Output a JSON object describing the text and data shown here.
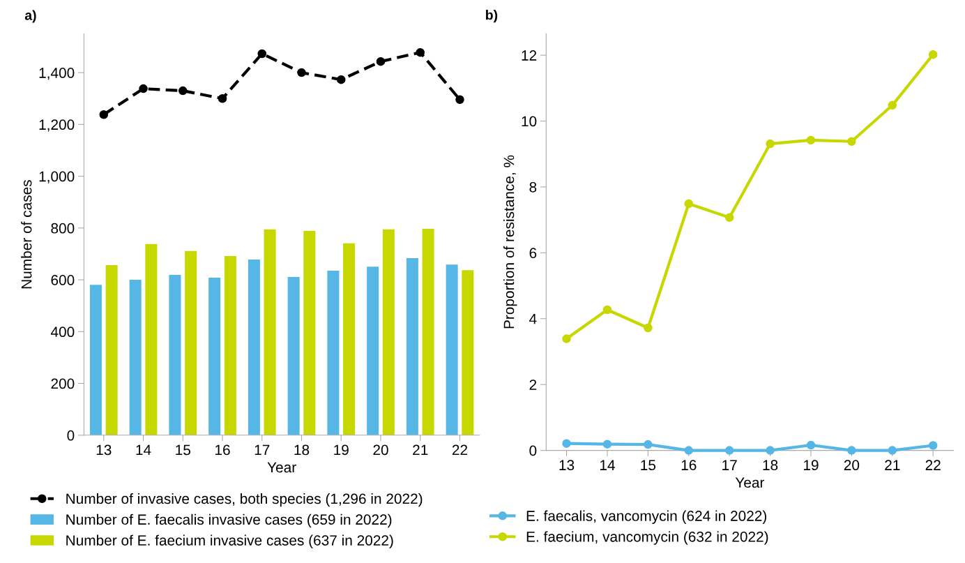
{
  "chart_data": [
    {
      "type": "bar",
      "title": "a)",
      "xlabel": "Year",
      "ylabel": "Number of cases",
      "categories": [
        "13",
        "14",
        "15",
        "16",
        "17",
        "18",
        "19",
        "20",
        "21",
        "22"
      ],
      "ylim": [
        0,
        1550
      ],
      "yticks": [
        0,
        200,
        400,
        {
          "value": 600,
          "label": "600"
        },
        {
          "value": 800,
          "label": "800"
        },
        {
          "value": 1000,
          "label": "1,000"
        },
        {
          "value": 1200,
          "label": "1,200"
        },
        {
          "value": 1400,
          "label": "1,400"
        }
      ],
      "grid": false,
      "legend": "bottom",
      "series": [
        {
          "name": "Number of invasive cases, both species (1,296 in 2022)",
          "type": "line",
          "color": "#000000",
          "marker": "circle",
          "line_style": "dashed",
          "values": [
            1238,
            1338,
            1330,
            1300,
            1473,
            1400,
            1373,
            1443,
            1478,
            1296
          ]
        },
        {
          "name": "Number of E. faecalis invasive cases (659 in 2022)",
          "type": "bar",
          "color": "#56b6e6",
          "values": [
            581,
            600,
            619,
            608,
            678,
            611,
            635,
            651,
            684,
            659
          ]
        },
        {
          "name": "Number of E. faecium invasive cases (637 in 2022)",
          "type": "bar",
          "color": "#c6d800",
          "values": [
            657,
            738,
            711,
            692,
            795,
            789,
            741,
            795,
            797,
            637
          ]
        }
      ]
    },
    {
      "type": "line",
      "title": "b)",
      "xlabel": "Year",
      "ylabel": "Proportion of resistance, %",
      "categories": [
        "13",
        "14",
        "15",
        "16",
        "17",
        "18",
        "19",
        "20",
        "21",
        "22"
      ],
      "ylim": [
        0,
        12.65
      ],
      "yticks": [
        0,
        2,
        4,
        6,
        8,
        10,
        12
      ],
      "grid": false,
      "legend": "bottom",
      "marker": "circle",
      "line_style": "solid",
      "series": [
        {
          "name": "E. faecalis, vancomycin (624 in 2022)",
          "color": "#56b6e6",
          "values": [
            0.21,
            0.19,
            0.18,
            0,
            0,
            0,
            0.16,
            0,
            0,
            0.15
          ]
        },
        {
          "name": "E. faecium, vancomycin (632 in 2022)",
          "color": "#c6d800",
          "values": [
            3.39,
            4.27,
            3.72,
            7.49,
            7.07,
            9.31,
            9.42,
            9.38,
            10.48,
            12.02
          ]
        }
      ]
    }
  ]
}
